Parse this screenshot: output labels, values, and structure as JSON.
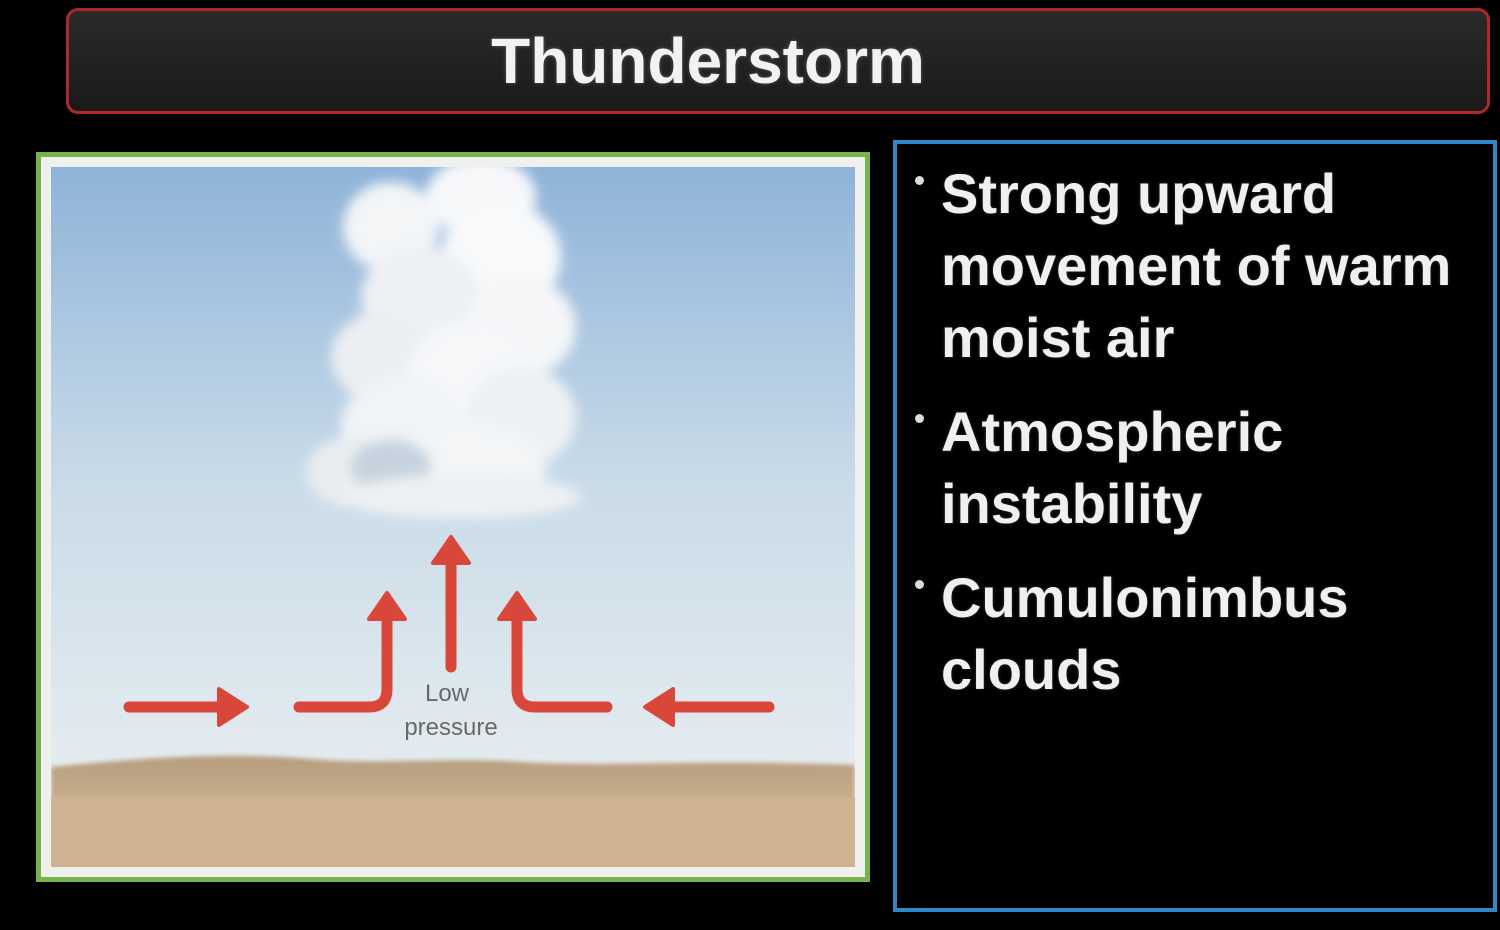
{
  "title": "Thunderstorm",
  "diagram": {
    "label_line1": "Low",
    "label_line2": "pressure",
    "colors": {
      "arrow": "#d9473a",
      "sky_top": "#8fb3d9",
      "sky_bottom": "#eef1f2",
      "ground": "#c5ab8a",
      "frame": "#79b24a"
    }
  },
  "bullets": [
    "Strong upward movement of warm moist air",
    "Atmospheric instability",
    "Cumulonimbus clouds"
  ],
  "panel": {
    "border_color": "#2f86c9"
  },
  "title_bar": {
    "border_color": "#b0262a"
  }
}
